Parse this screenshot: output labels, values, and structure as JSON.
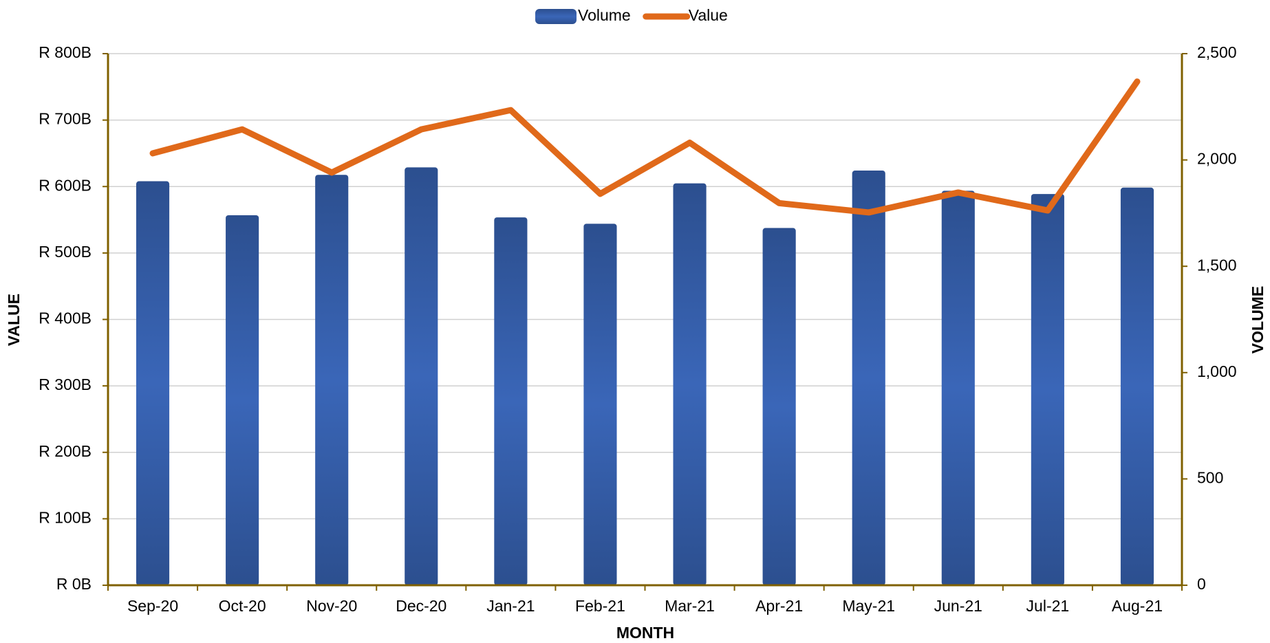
{
  "chart_data": {
    "type": "bar-line",
    "categories": [
      "Sep-20",
      "Oct-20",
      "Nov-20",
      "Dec-20",
      "Jan-21",
      "Feb-21",
      "Mar-21",
      "Apr-21",
      "May-21",
      "Jun-21",
      "Jul-21",
      "Aug-21"
    ],
    "series": [
      {
        "name": "Volume",
        "color": "#3a63b0",
        "axis": "y2",
        "type": "bar",
        "values": [
          1900,
          1740,
          1930,
          1965,
          1730,
          1700,
          1890,
          1680,
          1950,
          1855,
          1840,
          1870
        ]
      },
      {
        "name": "Value",
        "color": "#e0691a",
        "axis": "y",
        "type": "line",
        "values": [
          650,
          686,
          621,
          686,
          715,
          589,
          666,
          575,
          561,
          591,
          564,
          758
        ]
      }
    ],
    "ylabel": "VALUE",
    "y2label": "VOLUME",
    "xlabel": "MONTH",
    "ylim": [
      0,
      800
    ],
    "yticks": [
      {
        "value": 0,
        "label": "R 0B"
      },
      {
        "value": 100,
        "label": "R 100B"
      },
      {
        "value": 200,
        "label": "R 200B"
      },
      {
        "value": 300,
        "label": "R 300B"
      },
      {
        "value": 400,
        "label": "R 400B"
      },
      {
        "value": 500,
        "label": "R 500B"
      },
      {
        "value": 600,
        "label": "R 600B"
      },
      {
        "value": 700,
        "label": "R 700B"
      },
      {
        "value": 800,
        "label": "R 800B"
      }
    ],
    "y2lim": [
      0,
      2500
    ],
    "y2ticks": [
      0,
      500,
      {
        "value": 1000,
        "label": "1,000"
      },
      {
        "value": 1500,
        "label": "1,500"
      },
      {
        "value": 2000,
        "label": "2,000"
      },
      {
        "value": 2500,
        "label": "2,500"
      }
    ],
    "grid": true,
    "legend": "top",
    "axis_color": "#7f6000"
  }
}
